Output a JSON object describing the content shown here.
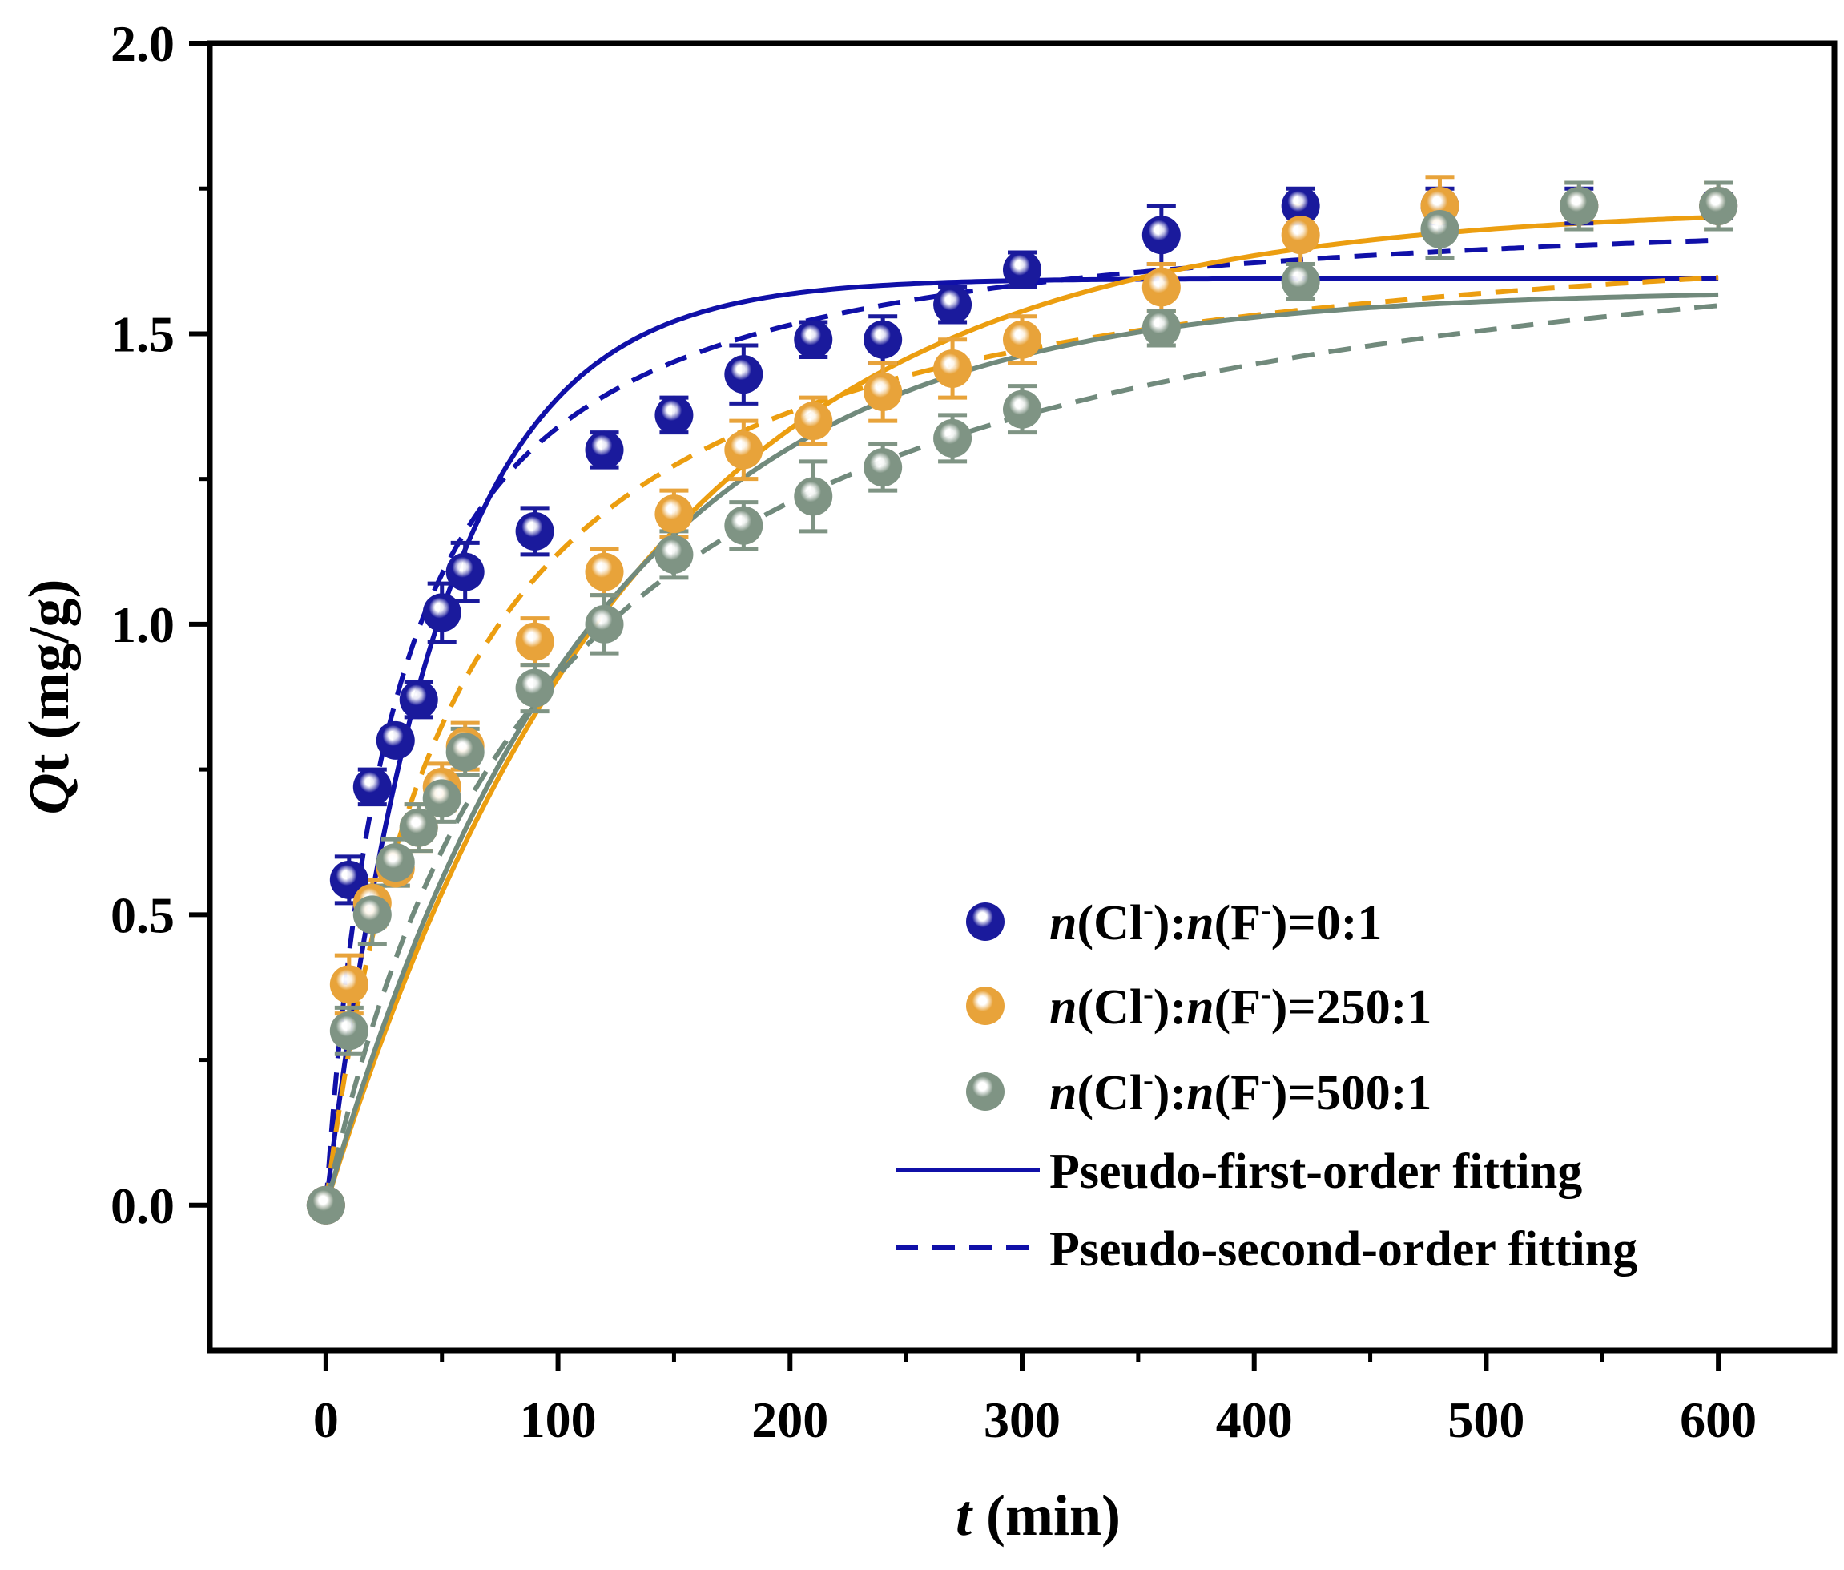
{
  "chart_data": {
    "type": "scatter",
    "xlabel": {
      "var": "t",
      "unit": " (min)"
    },
    "ylabel": {
      "var": "Q",
      "sub": "t",
      "unit": " (mg/g)"
    },
    "xlim": [
      -50,
      650
    ],
    "ylim": [
      -0.25,
      2.0
    ],
    "xticks": [
      0,
      100,
      200,
      300,
      400,
      500,
      600
    ],
    "yticks": [
      0.0,
      0.5,
      1.0,
      1.5,
      2.0
    ],
    "xtick_labels": [
      "0",
      "100",
      "200",
      "300",
      "400",
      "500",
      "600"
    ],
    "ytick_labels": [
      "0.0",
      "0.5",
      "1.0",
      "1.5",
      "2.0"
    ],
    "legend_position": "lower-right",
    "series": [
      {
        "label": {
          "n1": "n",
          "a": "(Cl",
          "s1": "-",
          "b": "):",
          "n2": "n",
          "c": "(F",
          "s2": "-",
          "d": ")=0:1"
        },
        "color": "#1a1a9c",
        "fitColor": "#1010a8",
        "x": [
          0,
          10,
          20,
          30,
          40,
          50,
          60,
          90,
          120,
          150,
          180,
          210,
          240,
          270,
          300,
          360,
          420,
          480,
          540,
          600
        ],
        "y": [
          0.0,
          0.56,
          0.72,
          0.8,
          0.87,
          1.02,
          1.09,
          1.16,
          1.3,
          1.36,
          1.43,
          1.49,
          1.49,
          1.55,
          1.61,
          1.67,
          1.72,
          1.72,
          1.72,
          1.72
        ],
        "err": [
          0.0,
          0.04,
          0.03,
          0.02,
          0.03,
          0.05,
          0.05,
          0.04,
          0.03,
          0.03,
          0.05,
          0.03,
          0.04,
          0.03,
          0.03,
          0.05,
          0.03,
          0.03,
          0.03,
          0.02
        ],
        "pfo": {
          "qe": 1.595,
          "k1": 0.0205
        },
        "pso": {
          "qe": 1.745,
          "k2": 0.0189
        }
      },
      {
        "label": {
          "n1": "n",
          "a": "(Cl",
          "s1": "-",
          "b": "):",
          "n2": "n",
          "c": "(F",
          "s2": "-",
          "d": ")=250:1"
        },
        "color": "#e8a33a",
        "fitColor": "#ec9e10",
        "x": [
          0,
          10,
          20,
          30,
          40,
          50,
          60,
          90,
          120,
          150,
          180,
          210,
          240,
          270,
          300,
          360,
          420,
          480,
          540,
          600
        ],
        "y": [
          0.0,
          0.38,
          0.52,
          0.58,
          0.65,
          0.72,
          0.79,
          0.97,
          1.09,
          1.19,
          1.3,
          1.35,
          1.4,
          1.44,
          1.49,
          1.58,
          1.67,
          1.72,
          1.72,
          1.72
        ],
        "err": [
          0.0,
          0.05,
          0.04,
          0.03,
          0.04,
          0.04,
          0.04,
          0.04,
          0.04,
          0.04,
          0.05,
          0.04,
          0.05,
          0.05,
          0.04,
          0.04,
          0.05,
          0.05,
          0.04,
          0.04
        ],
        "pfo": {
          "qe": 1.72,
          "k1": 0.0075
        },
        "pso": {
          "qe": 1.745,
          "k2": 0.0103
        }
      },
      {
        "label": {
          "n1": "n",
          "a": "(Cl",
          "s1": "-",
          "b": "):",
          "n2": "n",
          "c": "(F",
          "s2": "-",
          "d": ")=500:1"
        },
        "color": "#7f9484",
        "fitColor": "#718a7c",
        "x": [
          0,
          10,
          20,
          30,
          40,
          50,
          60,
          90,
          120,
          150,
          180,
          210,
          240,
          270,
          300,
          360,
          420,
          480,
          540,
          600
        ],
        "y": [
          0.0,
          0.3,
          0.5,
          0.59,
          0.65,
          0.7,
          0.78,
          0.89,
          1.0,
          1.12,
          1.17,
          1.22,
          1.27,
          1.32,
          1.37,
          1.51,
          1.59,
          1.68,
          1.72,
          1.72
        ],
        "err": [
          0.0,
          0.04,
          0.05,
          0.04,
          0.04,
          0.04,
          0.04,
          0.04,
          0.05,
          0.04,
          0.04,
          0.06,
          0.04,
          0.04,
          0.04,
          0.03,
          0.03,
          0.05,
          0.04,
          0.04
        ],
        "pfo": {
          "qe": 1.575,
          "k1": 0.0088
        },
        "pso": {
          "qe": 1.8,
          "k2": 0.0057
        }
      }
    ],
    "fit_legend": [
      {
        "label": "Pseudo-first-order fitting",
        "style": "solid"
      },
      {
        "label": "Pseudo-second-order fitting",
        "style": "dashed"
      }
    ]
  }
}
